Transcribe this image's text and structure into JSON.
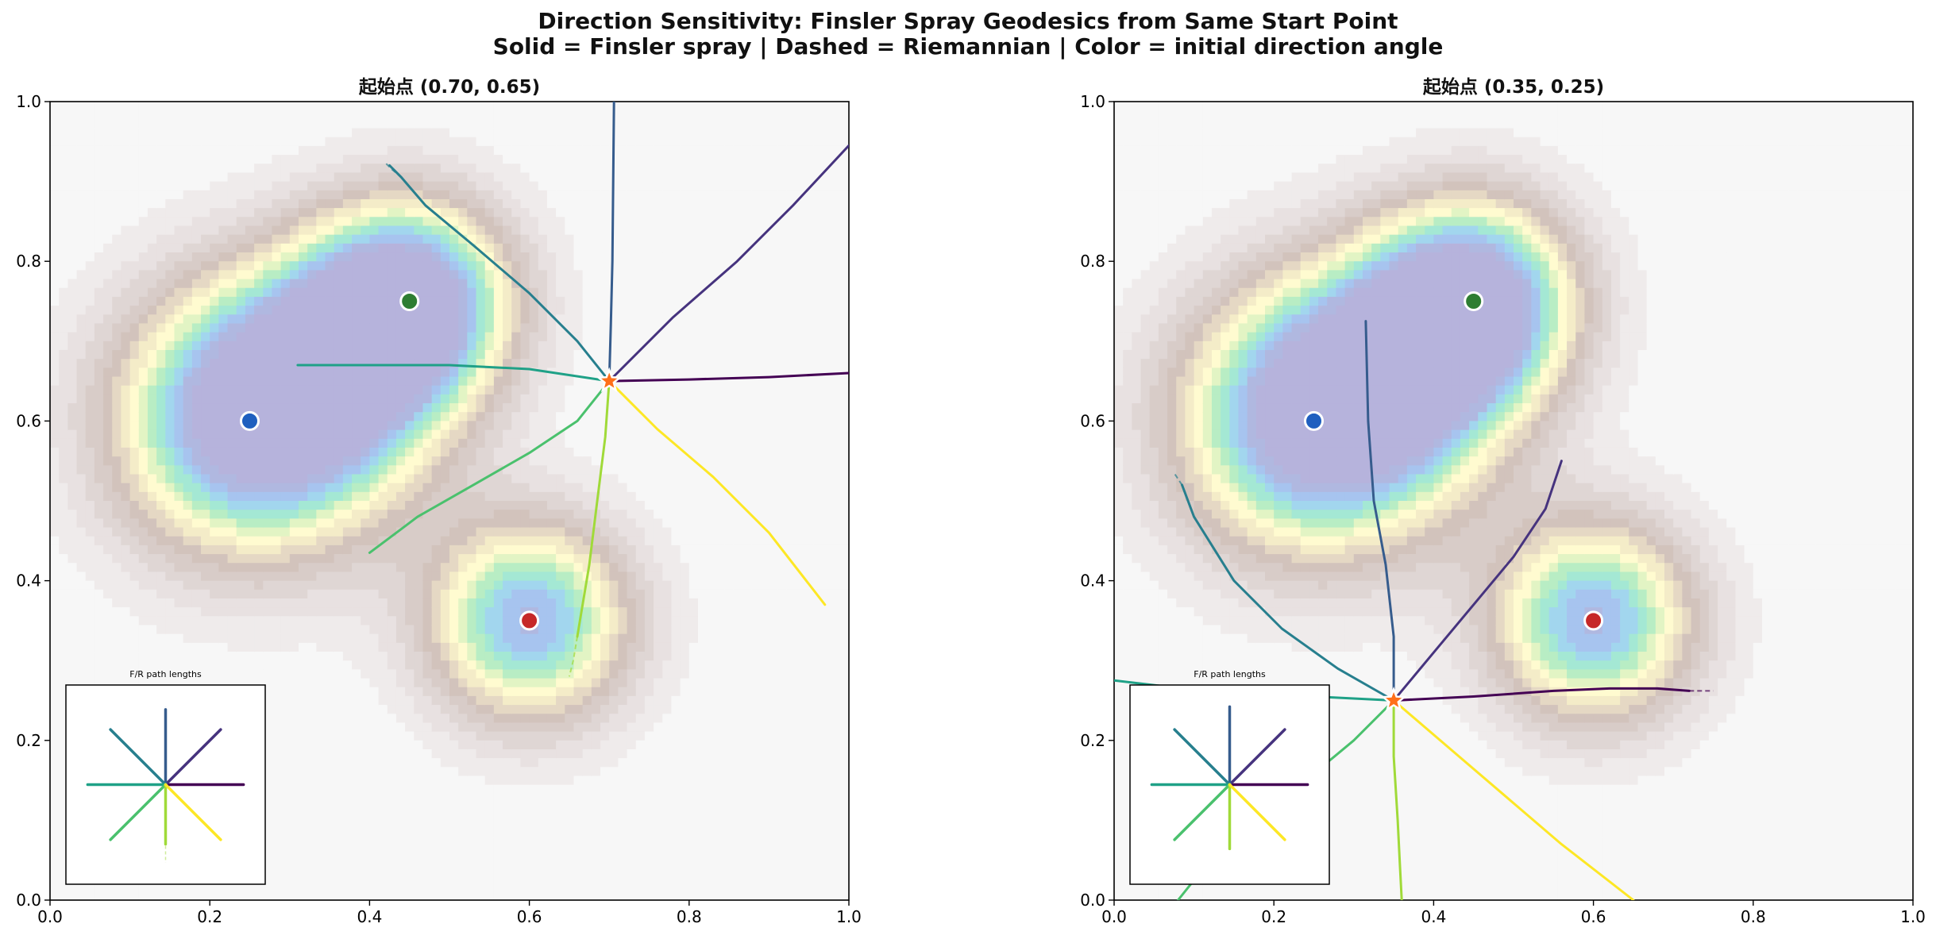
{
  "figure": {
    "title_line1": "Direction Sensitivity: Finsler Spray Geodesics from Same Start Point",
    "title_line2": "Solid = Finsler spray | Dashed = Riemannian | Color = initial direction angle"
  },
  "chart_data": [
    {
      "type": "line",
      "title": "起始点 (0.70, 0.65)",
      "xlim": [
        0,
        1
      ],
      "ylim": [
        0,
        1
      ],
      "xticks": [
        "0.0",
        "0.2",
        "0.4",
        "0.6",
        "0.8",
        "1.0"
      ],
      "yticks": [
        "0.0",
        "0.2",
        "0.4",
        "0.6",
        "0.8",
        "1.0"
      ],
      "background": "filled contour of an energy landscape with three minima",
      "start_point": [
        0.7,
        0.65
      ],
      "markers": [
        {
          "name": "blue-attractor",
          "x": 0.25,
          "y": 0.6,
          "color": "#1f5fbf"
        },
        {
          "name": "green-attractor",
          "x": 0.45,
          "y": 0.75,
          "color": "#2e7d32"
        },
        {
          "name": "red-attractor",
          "x": 0.6,
          "y": 0.35,
          "color": "#c62828"
        }
      ],
      "series": [
        {
          "angle_deg": 0,
          "color": "#440154",
          "points": [
            [
              0.7,
              0.65
            ],
            [
              0.8,
              0.652
            ],
            [
              0.9,
              0.655
            ],
            [
              1.0,
              0.66
            ]
          ]
        },
        {
          "angle_deg": 45,
          "color": "#46337e",
          "points": [
            [
              0.7,
              0.65
            ],
            [
              0.78,
              0.73
            ],
            [
              0.86,
              0.8
            ],
            [
              0.93,
              0.87
            ],
            [
              1.0,
              0.945
            ]
          ]
        },
        {
          "angle_deg": 90,
          "color": "#365c8d",
          "points": [
            [
              0.7,
              0.65
            ],
            [
              0.702,
              0.72
            ],
            [
              0.704,
              0.8
            ],
            [
              0.705,
              0.9
            ],
            [
              0.706,
              1.0
            ]
          ]
        },
        {
          "angle_deg": 135,
          "color": "#277f8e",
          "points": [
            [
              0.7,
              0.65
            ],
            [
              0.66,
              0.7
            ],
            [
              0.6,
              0.76
            ],
            [
              0.53,
              0.82
            ],
            [
              0.47,
              0.87
            ],
            [
              0.44,
              0.905
            ],
            [
              0.425,
              0.92
            ]
          ]
        },
        {
          "angle_deg": 180,
          "color": "#1fa187",
          "points": [
            [
              0.7,
              0.65
            ],
            [
              0.6,
              0.665
            ],
            [
              0.5,
              0.67
            ],
            [
              0.4,
              0.67
            ],
            [
              0.31,
              0.67
            ]
          ]
        },
        {
          "angle_deg": 225,
          "color": "#4ac16d",
          "points": [
            [
              0.7,
              0.65
            ],
            [
              0.66,
              0.6
            ],
            [
              0.6,
              0.56
            ],
            [
              0.53,
              0.52
            ],
            [
              0.46,
              0.48
            ],
            [
              0.4,
              0.435
            ]
          ]
        },
        {
          "angle_deg": 270,
          "color": "#a0da39",
          "points": [
            [
              0.7,
              0.65
            ],
            [
              0.695,
              0.58
            ],
            [
              0.685,
              0.5
            ],
            [
              0.675,
              0.42
            ],
            [
              0.665,
              0.36
            ],
            [
              0.66,
              0.33
            ]
          ]
        },
        {
          "angle_deg": 315,
          "color": "#fde725",
          "points": [
            [
              0.7,
              0.65
            ],
            [
              0.76,
              0.59
            ],
            [
              0.83,
              0.53
            ],
            [
              0.9,
              0.46
            ],
            [
              0.97,
              0.37
            ]
          ]
        }
      ],
      "riemannian_series": [
        {
          "angle_deg": 135,
          "color": "#277f8e",
          "points": [
            [
              0.44,
              0.905
            ],
            [
              0.428,
              0.915
            ],
            [
              0.418,
              0.925
            ]
          ]
        },
        {
          "angle_deg": 270,
          "color": "#a0da39",
          "points": [
            [
              0.66,
              0.33
            ],
            [
              0.655,
              0.3
            ],
            [
              0.65,
              0.28
            ]
          ]
        },
        {
          "angle_deg": 90,
          "color": "#365c8d",
          "points": [
            [
              0.7,
              0.65
            ],
            [
              0.7,
              0.66
            ]
          ]
        }
      ],
      "inset": {
        "title": "F/R path lengths",
        "rays": [
          {
            "angle_deg": 0,
            "finsler": 0.85,
            "riemann": 0.85
          },
          {
            "angle_deg": 45,
            "finsler": 0.85,
            "riemann": 0.85
          },
          {
            "angle_deg": 90,
            "finsler": 0.82,
            "riemann": 0.85
          },
          {
            "angle_deg": 135,
            "finsler": 0.85,
            "riemann": 0.85
          },
          {
            "angle_deg": 180,
            "finsler": 0.85,
            "riemann": 0.85
          },
          {
            "angle_deg": 225,
            "finsler": 0.85,
            "riemann": 0.85
          },
          {
            "angle_deg": 270,
            "finsler": 0.65,
            "riemann": 0.85
          },
          {
            "angle_deg": 315,
            "finsler": 0.85,
            "riemann": 0.85
          }
        ]
      }
    },
    {
      "type": "line",
      "title": "起始点 (0.35, 0.25)",
      "xlim": [
        0,
        1
      ],
      "ylim": [
        0,
        1
      ],
      "xticks": [
        "0.0",
        "0.2",
        "0.4",
        "0.6",
        "0.8",
        "1.0"
      ],
      "yticks": [
        "0.0",
        "0.2",
        "0.4",
        "0.6",
        "0.8",
        "1.0"
      ],
      "background": "filled contour of an energy landscape with three minima",
      "start_point": [
        0.35,
        0.25
      ],
      "markers": [
        {
          "name": "blue-attractor",
          "x": 0.25,
          "y": 0.6,
          "color": "#1f5fbf"
        },
        {
          "name": "green-attractor",
          "x": 0.45,
          "y": 0.75,
          "color": "#2e7d32"
        },
        {
          "name": "red-attractor",
          "x": 0.6,
          "y": 0.35,
          "color": "#c62828"
        }
      ],
      "series": [
        {
          "angle_deg": 0,
          "color": "#440154",
          "points": [
            [
              0.35,
              0.25
            ],
            [
              0.45,
              0.255
            ],
            [
              0.55,
              0.262
            ],
            [
              0.62,
              0.265
            ],
            [
              0.68,
              0.265
            ],
            [
              0.72,
              0.262
            ]
          ]
        },
        {
          "angle_deg": 45,
          "color": "#46337e",
          "points": [
            [
              0.35,
              0.25
            ],
            [
              0.4,
              0.31
            ],
            [
              0.45,
              0.37
            ],
            [
              0.5,
              0.43
            ],
            [
              0.54,
              0.49
            ],
            [
              0.56,
              0.55
            ]
          ]
        },
        {
          "angle_deg": 90,
          "color": "#365c8d",
          "points": [
            [
              0.35,
              0.25
            ],
            [
              0.35,
              0.33
            ],
            [
              0.34,
              0.42
            ],
            [
              0.325,
              0.5
            ],
            [
              0.318,
              0.6
            ],
            [
              0.315,
              0.725
            ]
          ]
        },
        {
          "angle_deg": 135,
          "color": "#277f8e",
          "points": [
            [
              0.35,
              0.25
            ],
            [
              0.28,
              0.29
            ],
            [
              0.21,
              0.34
            ],
            [
              0.15,
              0.4
            ],
            [
              0.1,
              0.48
            ],
            [
              0.085,
              0.52
            ]
          ]
        },
        {
          "angle_deg": 180,
          "color": "#1fa187",
          "points": [
            [
              0.35,
              0.25
            ],
            [
              0.25,
              0.255
            ],
            [
              0.15,
              0.262
            ],
            [
              0.06,
              0.268
            ],
            [
              0.0,
              0.275
            ]
          ]
        },
        {
          "angle_deg": 225,
          "color": "#4ac16d",
          "points": [
            [
              0.35,
              0.25
            ],
            [
              0.3,
              0.2
            ],
            [
              0.24,
              0.15
            ],
            [
              0.18,
              0.1
            ],
            [
              0.12,
              0.05
            ],
            [
              0.08,
              0.0
            ]
          ]
        },
        {
          "angle_deg": 270,
          "color": "#a0da39",
          "points": [
            [
              0.35,
              0.25
            ],
            [
              0.35,
              0.18
            ],
            [
              0.355,
              0.1
            ],
            [
              0.358,
              0.04
            ],
            [
              0.36,
              0.0
            ]
          ]
        },
        {
          "angle_deg": 315,
          "color": "#fde725",
          "points": [
            [
              0.35,
              0.25
            ],
            [
              0.42,
              0.19
            ],
            [
              0.49,
              0.13
            ],
            [
              0.56,
              0.07
            ],
            [
              0.65,
              0.0
            ]
          ]
        }
      ],
      "riemannian_series": [
        {
          "angle_deg": 0,
          "color": "#440154",
          "points": [
            [
              0.72,
              0.262
            ],
            [
              0.75,
              0.262
            ]
          ]
        },
        {
          "angle_deg": 135,
          "color": "#277f8e",
          "points": [
            [
              0.085,
              0.52
            ],
            [
              0.075,
              0.535
            ]
          ]
        }
      ],
      "inset": {
        "title": "F/R path lengths",
        "rays": [
          {
            "angle_deg": 0,
            "finsler": 0.85,
            "riemann": 0.85
          },
          {
            "angle_deg": 45,
            "finsler": 0.85,
            "riemann": 0.85
          },
          {
            "angle_deg": 90,
            "finsler": 0.85,
            "riemann": 0.85
          },
          {
            "angle_deg": 135,
            "finsler": 0.85,
            "riemann": 0.85
          },
          {
            "angle_deg": 180,
            "finsler": 0.85,
            "riemann": 0.85
          },
          {
            "angle_deg": 225,
            "finsler": 0.85,
            "riemann": 0.85
          },
          {
            "angle_deg": 270,
            "finsler": 0.7,
            "riemann": 0.7
          },
          {
            "angle_deg": 315,
            "finsler": 0.85,
            "riemann": 0.85
          }
        ]
      }
    }
  ]
}
